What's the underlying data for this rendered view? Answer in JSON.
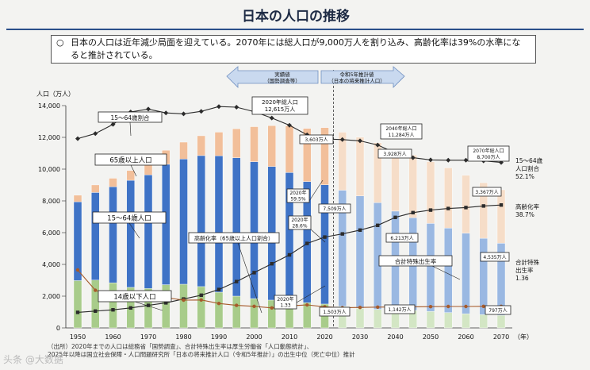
{
  "header": {
    "title": "日本の人口の推移",
    "summary_bullet": "○",
    "summary_text": "日本の人口は近年減少局面を迎えている。2070年には総人口が9,000万人を割り込み、高齢化率は39%の水準になると推計されている。"
  },
  "footer": {
    "source_label": "（出所）",
    "source_line1": "2020年までの人口は総務省「国勢調査」、合計特殊出生率は厚生労働省「人口動態統計」、",
    "source_line2": "2025年以降は国立社会保障・人口問題研究所「日本の将来推計人口（令和5年推計）」の出生中位（死亡中位）推計",
    "watermark": "头条 @大数据"
  },
  "colors": {
    "old_actual": "#f2bf9a",
    "working_actual": "#3f73c6",
    "young_actual": "#a8cc8a",
    "old_proj": "#f6ddc8",
    "working_proj": "#9ab8e2",
    "young_proj": "#d3e6c4",
    "lines": "#2b2b2b",
    "tfr": "#a65a2a"
  },
  "chart_data": {
    "type": "bar",
    "stacked": true,
    "ylabel": "人口（万人）",
    "xlabel": "（年）",
    "ylim": [
      0,
      14000
    ],
    "yticks": [
      "0",
      "2,000",
      "4,000",
      "6,000",
      "8,000",
      "10,000",
      "12,000",
      "14,000"
    ],
    "x": [
      1950,
      1955,
      1960,
      1965,
      1970,
      1975,
      1980,
      1985,
      1990,
      1995,
      2000,
      2005,
      2010,
      2015,
      2020,
      2025,
      2030,
      2035,
      2040,
      2045,
      2050,
      2055,
      2060,
      2065,
      2070
    ],
    "xticks": [
      "1950",
      "1960",
      "1970",
      "1980",
      "1990",
      "2000",
      "2010",
      "2020",
      "2030",
      "2040",
      "2050",
      "2060",
      "2070"
    ],
    "actual_until": 2020,
    "series": [
      {
        "name": "14歳以下人口",
        "values": [
          2979,
          3012,
          2843,
          2553,
          2482,
          2722,
          2751,
          2603,
          2249,
          2001,
          1847,
          1752,
          1680,
          1589,
          1503,
          1363,
          1240,
          1169,
          1142,
          1103,
          1041,
          966,
          893,
          837,
          797
        ]
      },
      {
        "name": "15～64歳人口",
        "values": [
          4966,
          5517,
          6047,
          6744,
          7157,
          7581,
          7883,
          8251,
          8590,
          8716,
          8622,
          8409,
          8103,
          7629,
          7509,
          7310,
          7076,
          6722,
          6213,
          5832,
          5540,
          5323,
          5078,
          4809,
          4535
        ]
      },
      {
        "name": "65歳以上人口",
        "values": [
          411,
          475,
          535,
          618,
          733,
          887,
          1065,
          1247,
          1489,
          1826,
          2204,
          2576,
          2948,
          3347,
          3603,
          3653,
          3696,
          3773,
          3928,
          3945,
          3888,
          3790,
          3644,
          3499,
          3367
        ]
      },
      {
        "name": "高齢化率（65歳以上人口割合）",
        "unit": "%",
        "values": [
          4.9,
          5.3,
          5.7,
          6.3,
          7.1,
          7.9,
          9.1,
          10.3,
          12.1,
          14.6,
          17.4,
          20.2,
          23.0,
          26.6,
          28.6,
          29.6,
          30.8,
          32.3,
          34.8,
          36.3,
          37.1,
          37.6,
          37.9,
          38.4,
          38.7
        ]
      },
      {
        "name": "15～64歳割合",
        "unit": "%",
        "values": [
          59.6,
          61.2,
          64.1,
          68.0,
          68.9,
          67.7,
          67.4,
          68.2,
          69.7,
          69.5,
          68.1,
          66.1,
          63.8,
          60.8,
          59.5,
          59.3,
          58.9,
          57.6,
          55.1,
          53.6,
          52.9,
          52.8,
          52.8,
          52.6,
          52.1
        ]
      },
      {
        "name": "合計特殊出生率",
        "values": [
          3.65,
          2.37,
          2.0,
          2.14,
          2.13,
          1.91,
          1.75,
          1.76,
          1.54,
          1.42,
          1.36,
          1.26,
          1.39,
          1.45,
          1.33,
          1.27,
          1.29,
          1.31,
          1.32,
          1.33,
          1.34,
          1.35,
          1.35,
          1.36,
          1.36
        ]
      }
    ],
    "annotations": {
      "actual_arrow": [
        "実績値",
        "（国勢調査等）"
      ],
      "proj_arrow": [
        "令和5年推計値",
        "（日本の将来推計人口）"
      ],
      "total2020": [
        "2020年総人口",
        "12,615万人"
      ],
      "total2040": [
        "2040年総人口",
        "11,284万人"
      ],
      "total2070": [
        "2070年総人口",
        "8,700万人"
      ],
      "old2020": "3,603万人",
      "old2040": "3,928万人",
      "old2070": "3,367万人",
      "work2020": "7,509万人",
      "work2040": "6,213万人",
      "work2070": "4,535万人",
      "young2020": "1,503万人",
      "young2040": "1,142万人",
      "young2070": "797万人",
      "rate2020a": [
        "2020年",
        "59.5%"
      ],
      "rate2020b": [
        "2020年",
        "28.6%"
      ],
      "tfr2020": [
        "2020年",
        "1.33"
      ],
      "lbl_working_ratio": "15～64歳割合",
      "lbl_old_pop": "65歳以上人口",
      "lbl_working_pop": "15～64歳人口",
      "lbl_aging": "高齢化率（65歳以上人口割合）",
      "lbl_young_pop": "14歳以下人口",
      "lbl_tfr": "合計特殊出生率",
      "right_ratio": [
        "15～64歳",
        "人口割合",
        "52.1%"
      ],
      "right_aging": [
        "高齢化率",
        "38.7%"
      ],
      "right_tfr": [
        "合計特殊",
        "出生率",
        "1.36"
      ]
    }
  }
}
